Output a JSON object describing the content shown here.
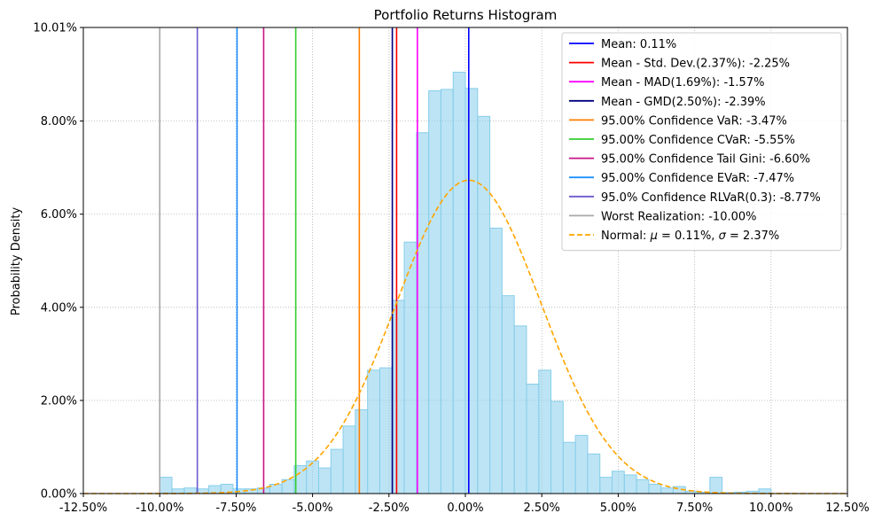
{
  "chart_data": {
    "type": "bar",
    "title": "Portfolio Returns Histogram",
    "xlabel": "",
    "ylabel": "Probability Density",
    "xlim": [
      -12.5,
      12.5
    ],
    "ylim": [
      0,
      10.01
    ],
    "x_ticks": [
      -12.5,
      -10,
      -7.5,
      -5,
      -2.5,
      0,
      2.5,
      5,
      7.5,
      10,
      12.5
    ],
    "x_tick_labels": [
      "-12.50%",
      "-10.00%",
      "-7.50%",
      "-5.00%",
      "-2.50%",
      "0.00%",
      "2.50%",
      "5.00%",
      "7.50%",
      "10.00%",
      "12.50%"
    ],
    "y_ticks": [
      0,
      2,
      4,
      6,
      8,
      10.01
    ],
    "y_tick_labels": [
      "0.00%",
      "2.00%",
      "4.00%",
      "6.00%",
      "8.00%",
      "10.01%"
    ],
    "grid": true,
    "legend_position": "top-right",
    "histogram": {
      "bin_start": -10.0,
      "bin_width": 0.4,
      "color": "#87ceeb",
      "values": [
        0.35,
        0.1,
        0.12,
        0.1,
        0.17,
        0.2,
        0.1,
        0.1,
        0.12,
        0.2,
        0.3,
        0.6,
        0.7,
        0.55,
        0.95,
        1.45,
        1.8,
        2.65,
        2.7,
        4.15,
        5.4,
        7.75,
        8.65,
        8.68,
        9.05,
        8.7,
        8.1,
        5.7,
        4.25,
        3.6,
        2.35,
        2.65,
        1.98,
        1.1,
        1.25,
        0.85,
        0.35,
        0.48,
        0.4,
        0.3,
        0.2,
        0.12,
        0.15,
        0.05,
        0.03,
        0.35,
        0.02,
        0.03,
        0.05,
        0.1
      ]
    },
    "vertical_lines": [
      {
        "label": "Mean: 0.11%",
        "x": 0.11,
        "color": "#0000ff",
        "style": "solid"
      },
      {
        "label": "Mean - Std. Dev.(2.37%): -2.25%",
        "x": -2.25,
        "color": "#ff0000",
        "style": "solid"
      },
      {
        "label": "Mean - MAD(1.69%): -1.57%",
        "x": -1.57,
        "color": "#ff00ff",
        "style": "solid"
      },
      {
        "label": "Mean - GMD(2.50%): -2.39%",
        "x": -2.39,
        "color": "#000080",
        "style": "solid"
      },
      {
        "label": "95.00% Confidence VaR: -3.47%",
        "x": -3.47,
        "color": "#ff8000",
        "style": "solid"
      },
      {
        "label": "95.00% Confidence CVaR: -5.55%",
        "x": -5.55,
        "color": "#32cd32",
        "style": "solid"
      },
      {
        "label": "95.00% Confidence Tail Gini: -6.60%",
        "x": -6.6,
        "color": "#c71585",
        "style": "solid"
      },
      {
        "label": "95.00% Confidence EVaR: -7.47%",
        "x": -7.47,
        "color": "#1e90ff",
        "style": "solid"
      },
      {
        "label": "95.0% Confidence RLVaR(0.3): -8.77%",
        "x": -8.77,
        "color": "#6a5acd",
        "style": "solid"
      },
      {
        "label": "Worst Realization: -10.00%",
        "x": -10.0,
        "color": "#a9a9a9",
        "style": "solid"
      }
    ],
    "normal_curve": {
      "label_prefix": "Normal: ",
      "label_mu": "μ",
      "label_mu_value": " = 0.11%, ",
      "label_sigma": "σ",
      "label_sigma_value": " = 2.37%",
      "mu": 0.11,
      "sigma": 2.37,
      "peak_density": 6.73,
      "color": "#ffa500",
      "style": "dashed"
    }
  }
}
